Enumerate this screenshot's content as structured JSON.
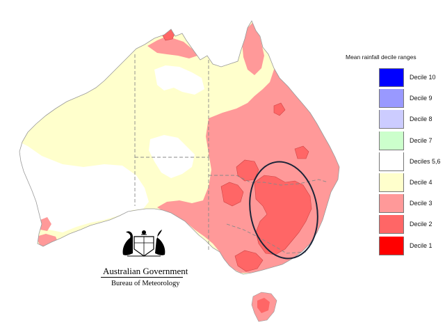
{
  "legend": {
    "title": "Mean rainfall decile ranges",
    "items": [
      {
        "label": "Decile 10",
        "color": "#0000ff"
      },
      {
        "label": "Decile 9",
        "color": "#9999ff"
      },
      {
        "label": "Decile 8",
        "color": "#ccccff"
      },
      {
        "label": "Decile 7",
        "color": "#ccffcc"
      },
      {
        "label": "Deciles 5,6",
        "color": "#ffffff"
      },
      {
        "label": "Decile 4",
        "color": "#ffffcc"
      },
      {
        "label": "Decile 3",
        "color": "#ff9999"
      },
      {
        "label": "Decile 2",
        "color": "#ff6666"
      },
      {
        "label": "Decile 1",
        "color": "#ff0000"
      }
    ]
  },
  "logo": {
    "government": "Australian Government",
    "bureau": "Bureau of Meteorology"
  },
  "map": {
    "region": "Australia",
    "highlight": "ellipse-around-murray-darling-basin"
  }
}
